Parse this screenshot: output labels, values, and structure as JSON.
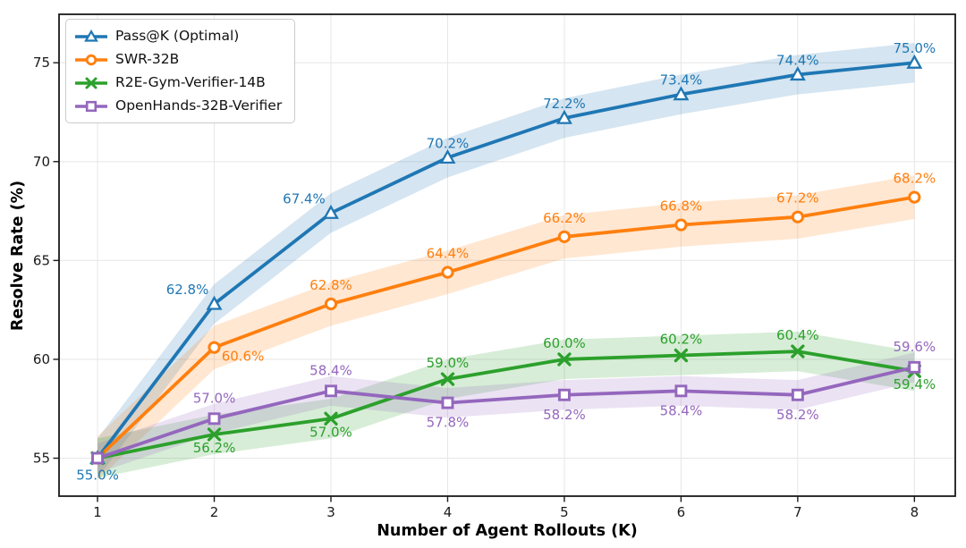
{
  "chart_data": {
    "type": "line",
    "title": "",
    "xlabel": "Number of Agent Rollouts (K)",
    "ylabel": "Resolve Rate (%)",
    "x": [
      1,
      2,
      3,
      4,
      5,
      6,
      7,
      8
    ],
    "xticks": [
      "1",
      "2",
      "3",
      "4",
      "5",
      "6",
      "7",
      "8"
    ],
    "yticks": [
      "55",
      "60",
      "65",
      "70",
      "75"
    ],
    "xlim": [
      0.67,
      8.35
    ],
    "ylim": [
      53.08,
      77.45
    ],
    "grid": true,
    "grid_color": "#e8e8e8",
    "background": "#ffffff",
    "legend_position": "upper-left",
    "series": [
      {
        "name": "Pass@K (Optimal)",
        "color": "#1f77b4",
        "marker": "triangle",
        "values": [
          55.0,
          62.8,
          67.4,
          70.2,
          72.2,
          73.4,
          74.4,
          75.0
        ],
        "point_labels": [
          "55.0%",
          "62.8%",
          "67.4%",
          "70.2%",
          "72.2%",
          "73.4%",
          "74.4%",
          "75.0%"
        ],
        "label_pos": [
          "below",
          "above-left",
          "above-left",
          "above",
          "above",
          "above",
          "above",
          "above"
        ],
        "band_halfwidth": 1.0
      },
      {
        "name": "SWR-32B",
        "color": "#ff7f0e",
        "marker": "circle",
        "values": [
          55.0,
          60.6,
          62.8,
          64.4,
          66.2,
          66.8,
          67.2,
          68.2
        ],
        "point_labels": [
          "",
          "60.6%",
          "62.8%",
          "64.4%",
          "66.2%",
          "66.8%",
          "67.2%",
          "68.2%"
        ],
        "label_pos": [
          "none",
          "below-right",
          "above",
          "above",
          "above",
          "above",
          "above",
          "above"
        ],
        "band_halfwidth": 1.1
      },
      {
        "name": "R2E-Gym-Verifier-14B",
        "color": "#2ca02c",
        "marker": "x",
        "values": [
          55.0,
          56.2,
          57.0,
          59.0,
          60.0,
          60.2,
          60.4,
          59.4
        ],
        "point_labels": [
          "",
          "56.2%",
          "57.0%",
          "59.0%",
          "60.0%",
          "60.2%",
          "60.4%",
          "59.4%"
        ],
        "label_pos": [
          "none",
          "below",
          "below",
          "above",
          "above",
          "above",
          "above",
          "below"
        ],
        "band_halfwidth": 1.0
      },
      {
        "name": "OpenHands-32B-Verifier",
        "color": "#9467bd",
        "marker": "square",
        "values": [
          55.0,
          57.0,
          58.4,
          57.8,
          58.2,
          58.4,
          58.2,
          59.6
        ],
        "point_labels": [
          "",
          "57.0%",
          "58.4%",
          "57.8%",
          "58.2%",
          "58.4%",
          "58.2%",
          "59.6%"
        ],
        "label_pos": [
          "none",
          "above",
          "above",
          "below",
          "below",
          "below",
          "below",
          "above"
        ],
        "band_halfwidth": 0.75
      }
    ],
    "legend": [
      "Pass@K (Optimal)",
      "SWR-32B",
      "R2E-Gym-Verifier-14B",
      "OpenHands-32B-Verifier"
    ]
  }
}
